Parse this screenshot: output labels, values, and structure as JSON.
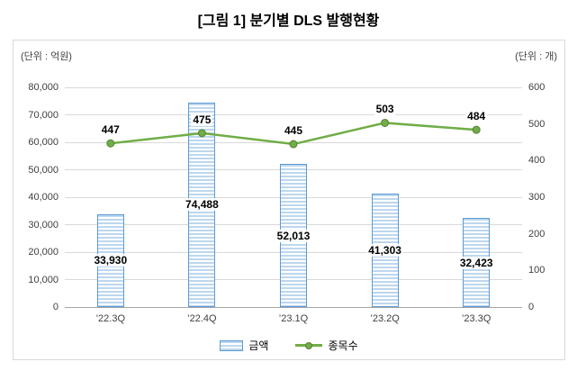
{
  "title": "[그림 1] 분기별 DLS 발행현황",
  "left_unit": "(단위 : 억원)",
  "right_unit": "(단위 : 개)",
  "legend": {
    "bar": "금액",
    "line": "종목수"
  },
  "chart_data": {
    "type": "bar+line",
    "title": "[그림 1] 분기별 DLS 발행현황",
    "categories": [
      "’22.3Q",
      "’22.4Q",
      "’23.1Q",
      "’23.2Q",
      "’23.3Q"
    ],
    "series": [
      {
        "name": "금액",
        "type": "bar",
        "axis": "left",
        "values": [
          33930,
          74488,
          52013,
          41303,
          32423
        ],
        "labels": [
          "33,930",
          "74,488",
          "52,013",
          "41,303",
          "32,423"
        ]
      },
      {
        "name": "종목수",
        "type": "line",
        "axis": "right",
        "values": [
          447,
          475,
          445,
          503,
          484
        ],
        "labels": [
          "447",
          "475",
          "445",
          "503",
          "484"
        ]
      }
    ],
    "left_axis": {
      "label": "(단위 : 억원)",
      "min": 0,
      "max": 80000,
      "step": 10000,
      "ticks": [
        "0",
        "10,000",
        "20,000",
        "30,000",
        "40,000",
        "50,000",
        "60,000",
        "70,000",
        "80,000"
      ]
    },
    "right_axis": {
      "label": "(단위 : 개)",
      "min": 0,
      "max": 600,
      "step": 100,
      "ticks": [
        "0",
        "100",
        "200",
        "300",
        "400",
        "500",
        "600"
      ]
    },
    "grid": true,
    "legend_position": "bottom",
    "colors": {
      "bar_fill": "#bdd7ee",
      "bar_border": "#5b9bd5",
      "line": "#70ad47",
      "line_marker_edge": "#548235",
      "gridline": "#d9d9d9"
    }
  }
}
